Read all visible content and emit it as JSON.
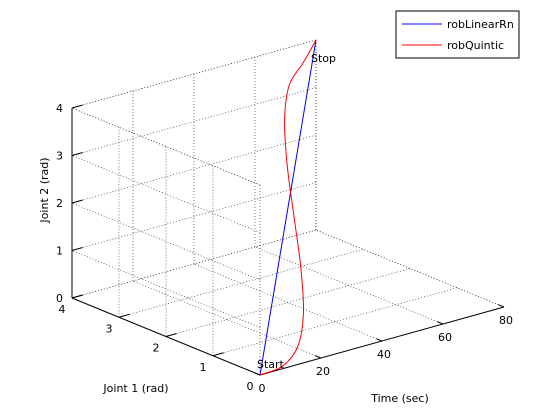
{
  "chart_data": {
    "type": "line",
    "xlabel": "Time (sec)",
    "ylabel": "Joint 1 (rad)",
    "zlabel": "Joint 2 (rad)",
    "xlim": [
      0,
      80
    ],
    "ylim": [
      0,
      4
    ],
    "zlim": [
      0,
      4
    ],
    "xticks": [
      0,
      20,
      40,
      60,
      80
    ],
    "yticks": [
      0,
      1,
      2,
      3,
      4
    ],
    "zticks": [
      0,
      1,
      2,
      3,
      4
    ],
    "grid": true,
    "legend_position": "top-right",
    "annotations": [
      {
        "text": "Start",
        "x": 0,
        "y": 0,
        "z": 0
      },
      {
        "text": "Stop",
        "x": 80,
        "y": 4,
        "z": 4
      }
    ],
    "series": [
      {
        "name": "robLinearRn",
        "color": "#0000ff",
        "x": [
          0,
          80
        ],
        "y": [
          0,
          4
        ],
        "z": [
          0,
          4
        ]
      },
      {
        "name": "robQuintic",
        "color": "#ff0000",
        "x": [
          0,
          8,
          16,
          24,
          32,
          40,
          48,
          56,
          64,
          72,
          80
        ],
        "y": [
          0,
          0.0342,
          0.2317,
          0.6328,
          1.2096,
          1.875,
          2.5373,
          3.1112,
          3.5298,
          3.7575,
          4
        ],
        "z": [
          0,
          0.0342,
          0.2317,
          0.6328,
          1.2096,
          1.875,
          2.5373,
          3.1112,
          3.5298,
          3.7575,
          4
        ]
      }
    ]
  }
}
